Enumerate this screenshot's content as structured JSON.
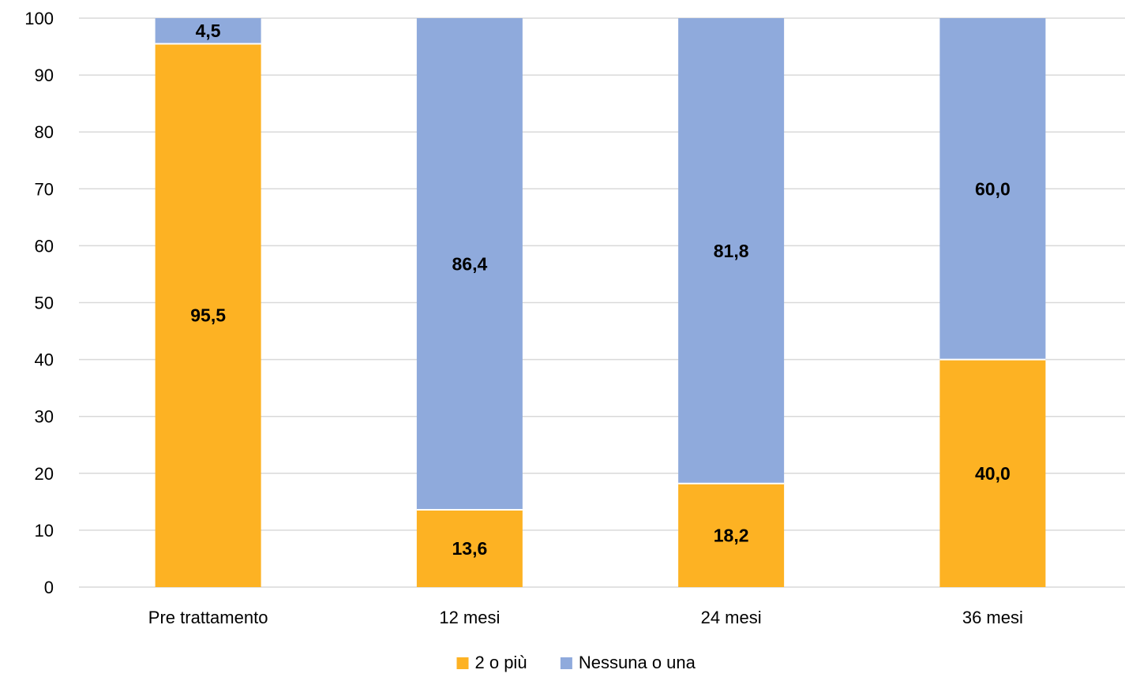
{
  "chart_data": {
    "type": "bar",
    "stacked": true,
    "categories": [
      "Pre trattamento",
      "12 mesi",
      "24 mesi",
      "36 mesi"
    ],
    "series": [
      {
        "name": "2 o più",
        "values": [
          95.5,
          13.6,
          18.2,
          40.0
        ],
        "labels": [
          "95,5",
          "13,6",
          "18,2",
          "40,0"
        ],
        "color": "#FDB223"
      },
      {
        "name": "Nessuna o una",
        "values": [
          4.5,
          86.4,
          81.8,
          60.0
        ],
        "labels": [
          "4,5",
          "86,4",
          "81,8",
          "60,0"
        ],
        "color": "#8FAADC"
      }
    ],
    "title": "",
    "xlabel": "",
    "ylabel": "",
    "ylim": [
      0,
      100
    ],
    "yticks": [
      0,
      10,
      20,
      30,
      40,
      50,
      60,
      70,
      80,
      90,
      100
    ],
    "grid": true,
    "legend_position": "bottom"
  }
}
